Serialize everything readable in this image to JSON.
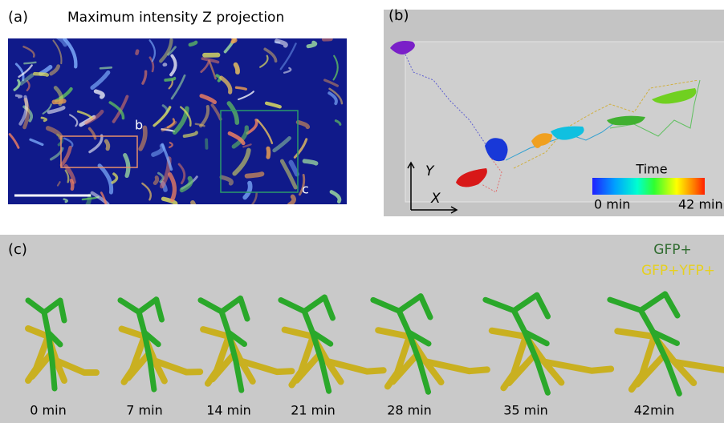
{
  "panel_a": {
    "label": "(a)",
    "title": "Maximum intensity Z projection",
    "box_b_label": "b",
    "box_c_label": "c"
  },
  "panel_b": {
    "label": "(b)",
    "axis_y": "Y",
    "axis_x": "X",
    "colorbar_title": "Time",
    "colorbar_min": "0 min",
    "colorbar_max": "42 min"
  },
  "panel_c": {
    "label": "(c)",
    "legend": [
      "GFP+",
      "GFP+YFP+"
    ],
    "timepoints": [
      "0 min",
      "7 min",
      "14 min",
      "21 min",
      "28 min",
      "35 min",
      "42min"
    ]
  }
}
